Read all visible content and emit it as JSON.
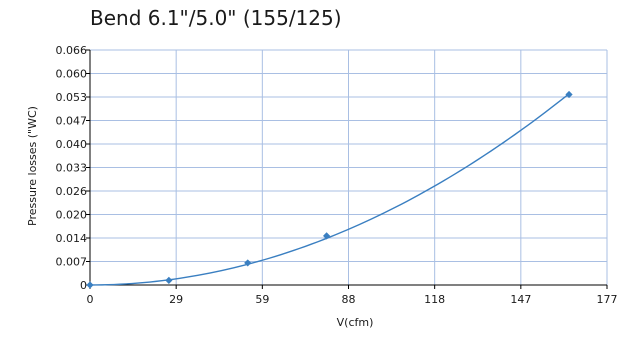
{
  "chart_data": {
    "type": "line",
    "title": "Bend 6.1\"/5.0\" (155/125)",
    "xlabel": "V(cfm)",
    "ylabel": "Pressure losses (\"WC)",
    "xlim": [
      0,
      177
    ],
    "ylim": [
      0,
      0.066
    ],
    "x_ticks": [
      "0",
      "29",
      "59",
      "88",
      "118",
      "147",
      "177"
    ],
    "y_ticks": [
      "0",
      "0.007",
      "0.014",
      "0.020",
      "0.026",
      "0.033",
      "0.040",
      "0.047",
      "0.053",
      "0.060",
      "0.066"
    ],
    "grid": true,
    "legend": "none",
    "series": [
      {
        "color": "#3a7fc1",
        "marker": "diamond",
        "points": [
          [
            0,
            0
          ],
          [
            27,
            0.0013
          ],
          [
            54,
            0.0062
          ],
          [
            81,
            0.0138
          ],
          [
            164,
            0.0535
          ]
        ]
      }
    ],
    "colors": {
      "grid": "#a9bfe3",
      "axis": "#000000"
    }
  }
}
